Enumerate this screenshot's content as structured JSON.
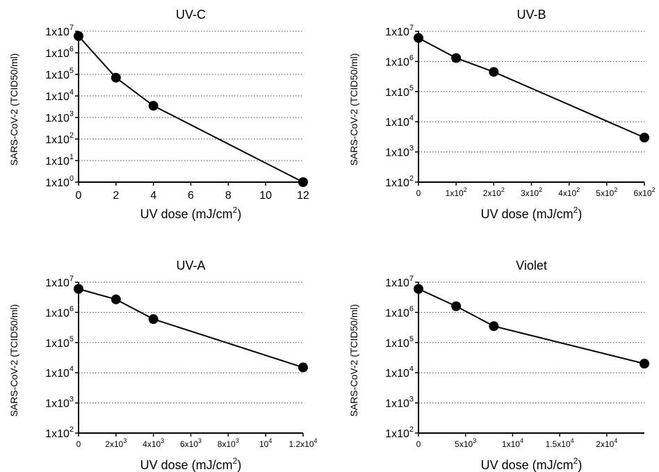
{
  "chart_data": [
    {
      "type": "line",
      "title": "UV-C",
      "xlabel": "UV dose (mJ/cm",
      "xlabel_sup": "2",
      "xlabel_end": ")",
      "ylabel": "SARS-CoV-2 (TCID50/ml)",
      "y_scale": "log",
      "xlim": [
        0,
        12
      ],
      "ylim": [
        1,
        10000000
      ],
      "grid": "horizontal dotted",
      "x_ticks": [
        {
          "v": 0,
          "label": "0"
        },
        {
          "v": 2,
          "label": "2"
        },
        {
          "v": 4,
          "label": "4"
        },
        {
          "v": 6,
          "label": "6"
        },
        {
          "v": 8,
          "label": "8"
        },
        {
          "v": 10,
          "label": "10"
        },
        {
          "v": 12,
          "label": "12"
        }
      ],
      "y_ticks": [
        {
          "v": 1,
          "base": "1x10",
          "exp": "0"
        },
        {
          "v": 10,
          "base": "1x10",
          "exp": "1"
        },
        {
          "v": 100,
          "base": "1x10",
          "exp": "2"
        },
        {
          "v": 1000,
          "base": "1x10",
          "exp": "3"
        },
        {
          "v": 10000,
          "base": "1x10",
          "exp": "4"
        },
        {
          "v": 100000,
          "base": "1x10",
          "exp": "5"
        },
        {
          "v": 1000000,
          "base": "1x10",
          "exp": "6"
        },
        {
          "v": 10000000,
          "base": "1x10",
          "exp": "7"
        }
      ],
      "series": [
        {
          "x": [
            0,
            2,
            4,
            12
          ],
          "y": [
            6000000,
            70000,
            3500,
            1
          ]
        }
      ]
    },
    {
      "type": "line",
      "title": "UV-B",
      "xlabel": "UV dose (mJ/cm",
      "xlabel_sup": "2",
      "xlabel_end": ")",
      "ylabel": "SARS-CoV-2 (TCID50/ml)",
      "y_scale": "log",
      "xlim": [
        0,
        600
      ],
      "ylim": [
        100,
        10000000
      ],
      "grid": "horizontal dotted",
      "x_ticks": [
        {
          "v": 0,
          "base": "0",
          "exp": ""
        },
        {
          "v": 100,
          "base": "1x10",
          "exp": "2"
        },
        {
          "v": 200,
          "base": "2x10",
          "exp": "2"
        },
        {
          "v": 300,
          "base": "3x10",
          "exp": "2"
        },
        {
          "v": 400,
          "base": "4x10",
          "exp": "2"
        },
        {
          "v": 500,
          "base": "5x10",
          "exp": "2"
        },
        {
          "v": 600,
          "base": "6x10",
          "exp": "2"
        }
      ],
      "y_ticks": [
        {
          "v": 100,
          "base": "1x10",
          "exp": "2"
        },
        {
          "v": 1000,
          "base": "1x10",
          "exp": "3"
        },
        {
          "v": 10000,
          "base": "1x10",
          "exp": "4"
        },
        {
          "v": 100000,
          "base": "1x10",
          "exp": "5"
        },
        {
          "v": 1000000,
          "base": "1x10",
          "exp": "6"
        },
        {
          "v": 10000000,
          "base": "1x10",
          "exp": "7"
        }
      ],
      "series": [
        {
          "x": [
            0,
            100,
            200,
            600
          ],
          "y": [
            6000000,
            1300000,
            450000,
            3000
          ]
        }
      ]
    },
    {
      "type": "line",
      "title": "UV-A",
      "xlabel": "UV dose (mJ/cm",
      "xlabel_sup": "2",
      "xlabel_end": ")",
      "ylabel": "SARS-CoV-2 (TCID50/ml)",
      "y_scale": "log",
      "xlim": [
        0,
        12000
      ],
      "ylim": [
        100,
        10000000
      ],
      "grid": "horizontal dotted",
      "x_ticks": [
        {
          "v": 0,
          "base": "0",
          "exp": ""
        },
        {
          "v": 2000,
          "base": "2x10",
          "exp": "3"
        },
        {
          "v": 4000,
          "base": "4x10",
          "exp": "3"
        },
        {
          "v": 6000,
          "base": "6x10",
          "exp": "3"
        },
        {
          "v": 8000,
          "base": "8x10",
          "exp": "3"
        },
        {
          "v": 10000,
          "base": "10",
          "exp": "4"
        },
        {
          "v": 12000,
          "base": "1.2x10",
          "exp": "4"
        }
      ],
      "y_ticks": [
        {
          "v": 100,
          "base": "1x10",
          "exp": "2"
        },
        {
          "v": 1000,
          "base": "1x10",
          "exp": "3"
        },
        {
          "v": 10000,
          "base": "1x10",
          "exp": "4"
        },
        {
          "v": 100000,
          "base": "1x10",
          "exp": "5"
        },
        {
          "v": 1000000,
          "base": "1x10",
          "exp": "6"
        },
        {
          "v": 10000000,
          "base": "1x10",
          "exp": "7"
        }
      ],
      "series": [
        {
          "x": [
            0,
            2000,
            4000,
            12000
          ],
          "y": [
            6000000,
            2700000,
            600000,
            15000
          ]
        }
      ]
    },
    {
      "type": "line",
      "title": "Violet",
      "xlabel": "UV dose (mJ/cm",
      "xlabel_sup": "2",
      "xlabel_end": ")",
      "ylabel": "SARS-CoV-2 (TCID50/ml)",
      "y_scale": "log",
      "xlim": [
        0,
        24000
      ],
      "ylim": [
        100,
        10000000
      ],
      "grid": "horizontal dotted",
      "x_ticks": [
        {
          "v": 0,
          "base": "0",
          "exp": ""
        },
        {
          "v": 5000,
          "base": "5x10",
          "exp": "3"
        },
        {
          "v": 10000,
          "base": "1x10",
          "exp": "4"
        },
        {
          "v": 15000,
          "base": "1.5x10",
          "exp": "4"
        },
        {
          "v": 20000,
          "base": "2x10",
          "exp": "4"
        }
      ],
      "y_ticks": [
        {
          "v": 100,
          "base": "1x10",
          "exp": "2"
        },
        {
          "v": 1000,
          "base": "1x10",
          "exp": "3"
        },
        {
          "v": 10000,
          "base": "1x10",
          "exp": "4"
        },
        {
          "v": 100000,
          "base": "1x10",
          "exp": "5"
        },
        {
          "v": 1000000,
          "base": "1x10",
          "exp": "6"
        },
        {
          "v": 10000000,
          "base": "1x10",
          "exp": "7"
        }
      ],
      "series": [
        {
          "x": [
            0,
            4000,
            8000,
            24000
          ],
          "y": [
            6000000,
            1600000,
            350000,
            20000
          ]
        }
      ]
    }
  ]
}
